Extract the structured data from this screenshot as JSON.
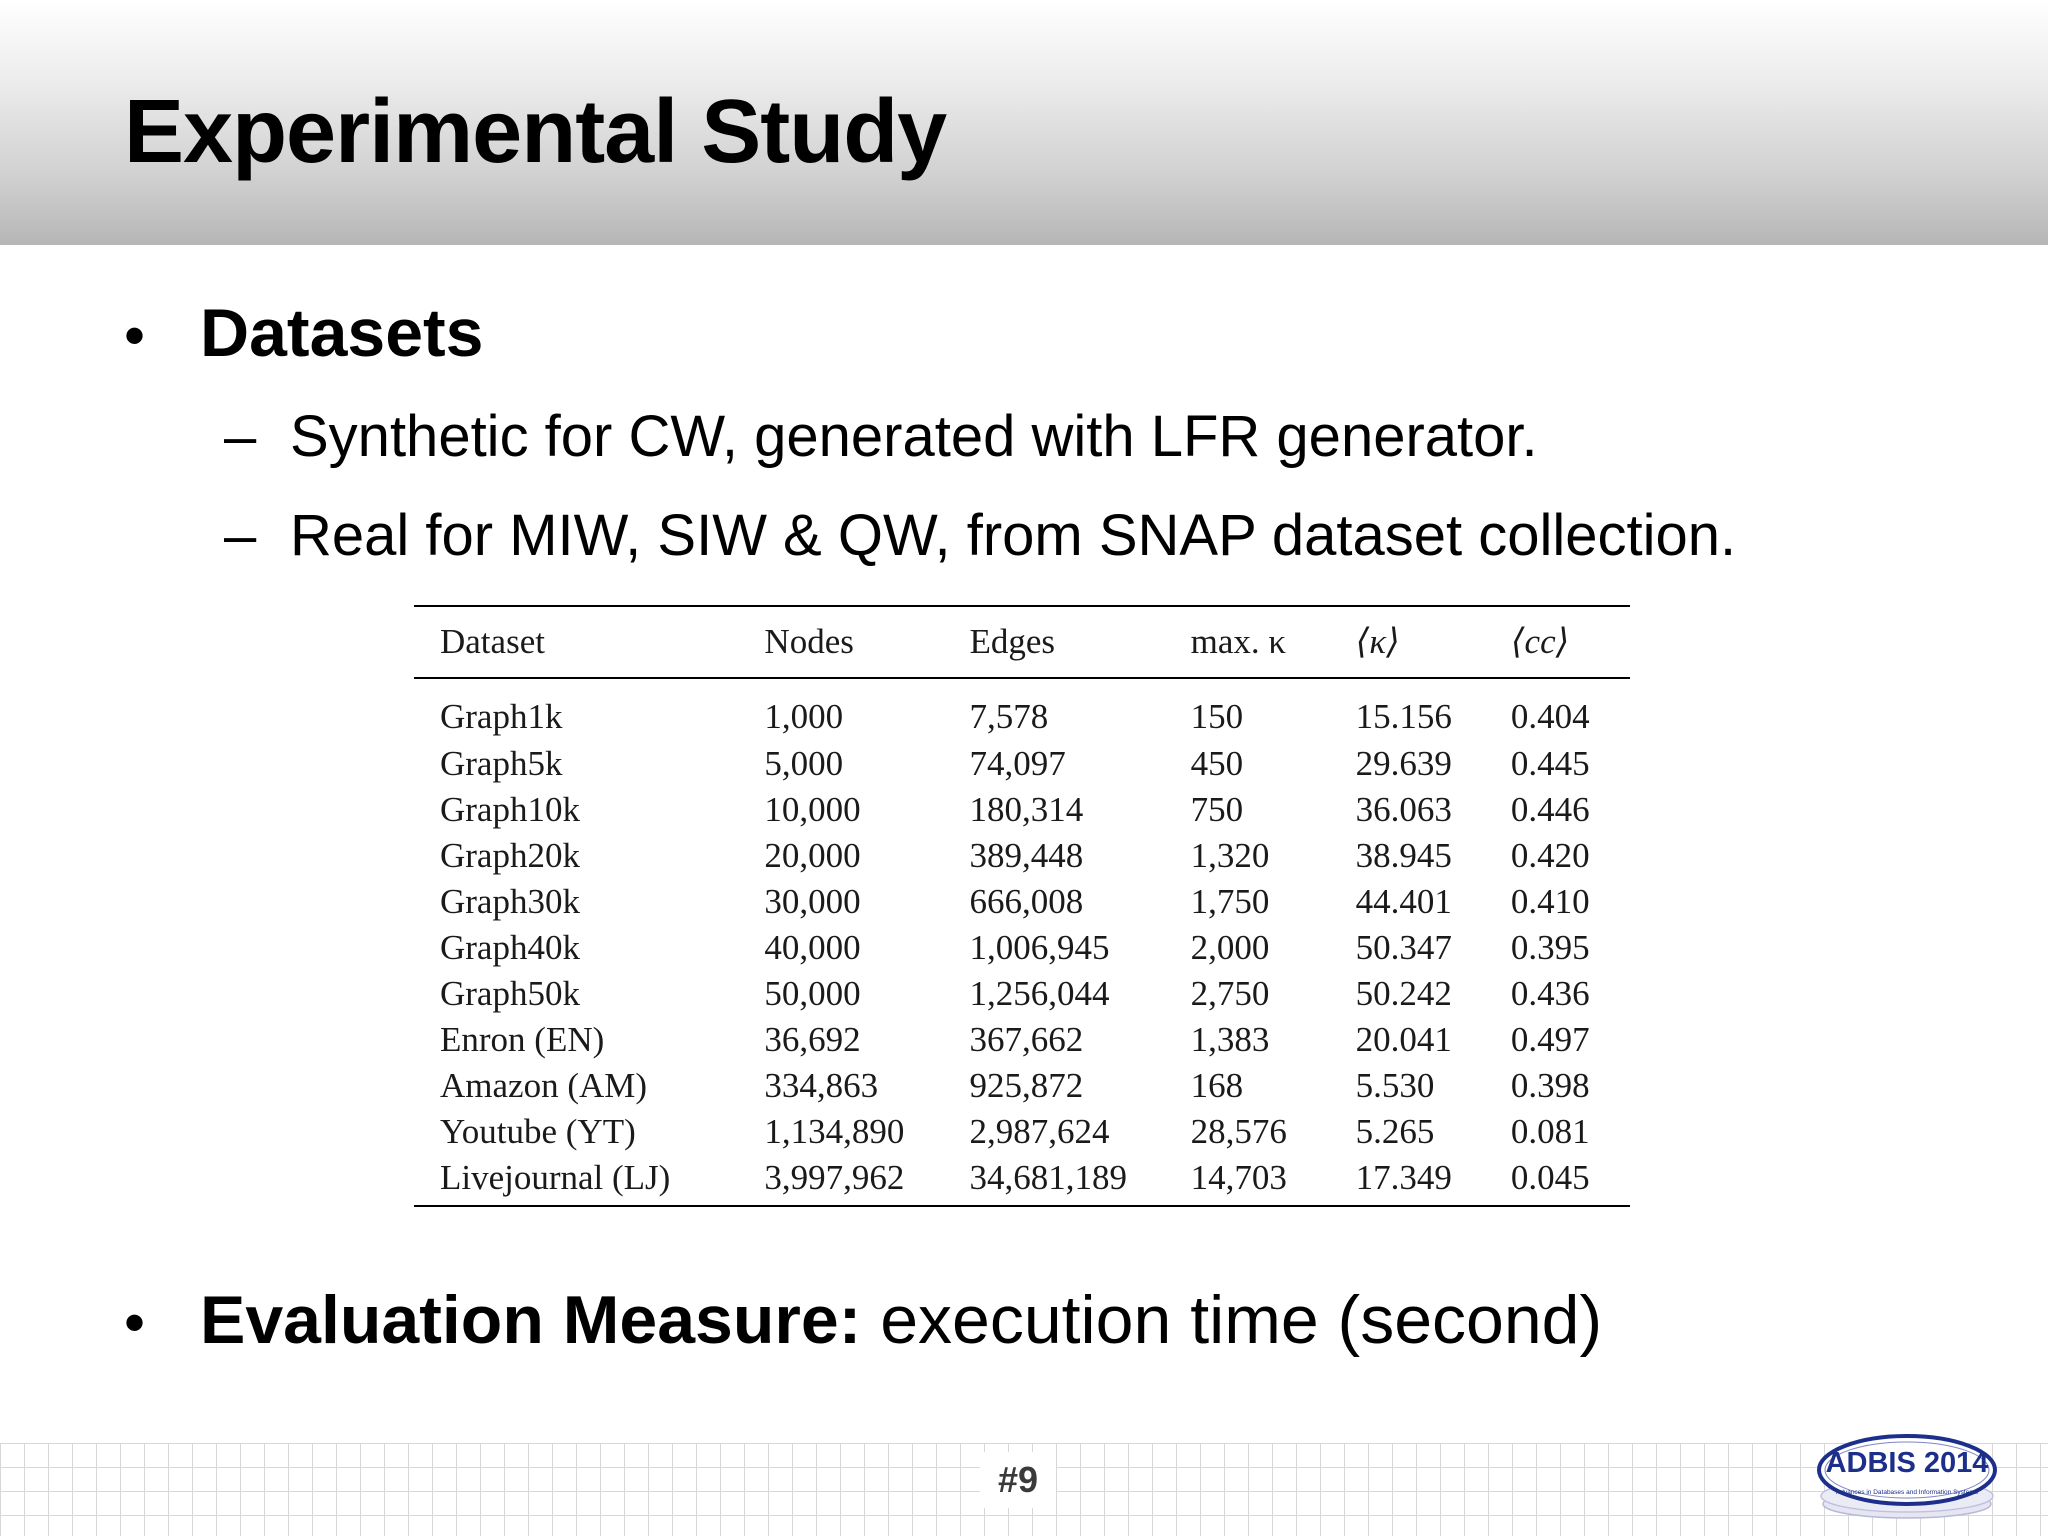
{
  "slide": {
    "title": "Experimental Study",
    "bullets": {
      "datasets_label": "Datasets",
      "datasets_sub": [
        "Synthetic for CW, generated with LFR generator.",
        "Real for MIW, SIW & QW, from SNAP dataset collection."
      ],
      "evaluation_label": "Evaluation Measure:",
      "evaluation_text": " execution time (second)",
      "bullet_glyph": "•",
      "dash_glyph": "–"
    },
    "table": {
      "headers": [
        "Dataset",
        "Nodes",
        "Edges",
        "max. κ",
        "⟨κ⟩",
        "⟨cc⟩"
      ],
      "rows": [
        [
          "Graph1k",
          "1,000",
          "7,578",
          "150",
          "15.156",
          "0.404"
        ],
        [
          "Graph5k",
          "5,000",
          "74,097",
          "450",
          "29.639",
          "0.445"
        ],
        [
          "Graph10k",
          "10,000",
          "180,314",
          "750",
          "36.063",
          "0.446"
        ],
        [
          "Graph20k",
          "20,000",
          "389,448",
          "1,320",
          "38.945",
          "0.420"
        ],
        [
          "Graph30k",
          "30,000",
          "666,008",
          "1,750",
          "44.401",
          "0.410"
        ],
        [
          "Graph40k",
          "40,000",
          "1,006,945",
          "2,000",
          "50.347",
          "0.395"
        ],
        [
          "Graph50k",
          "50,000",
          "1,256,044",
          "2,750",
          "50.242",
          "0.436"
        ],
        [
          "Enron (EN)",
          "36,692",
          "367,662",
          "1,383",
          "20.041",
          "0.497"
        ],
        [
          "Amazon (AM)",
          "334,863",
          "925,872",
          "168",
          "5.530",
          "0.398"
        ],
        [
          "Youtube (YT)",
          "1,134,890",
          "2,987,624",
          "28,576",
          "5.265",
          "0.081"
        ],
        [
          "Livejournal (LJ)",
          "3,997,962",
          "34,681,189",
          "14,703",
          "17.349",
          "0.045"
        ]
      ]
    },
    "footer": {
      "page_number": "#9",
      "logo_text": "ADBIS 2014",
      "logo_subtitle": "Advances in Databases and Information Systems",
      "logo_color": "#1c2f8a"
    }
  }
}
